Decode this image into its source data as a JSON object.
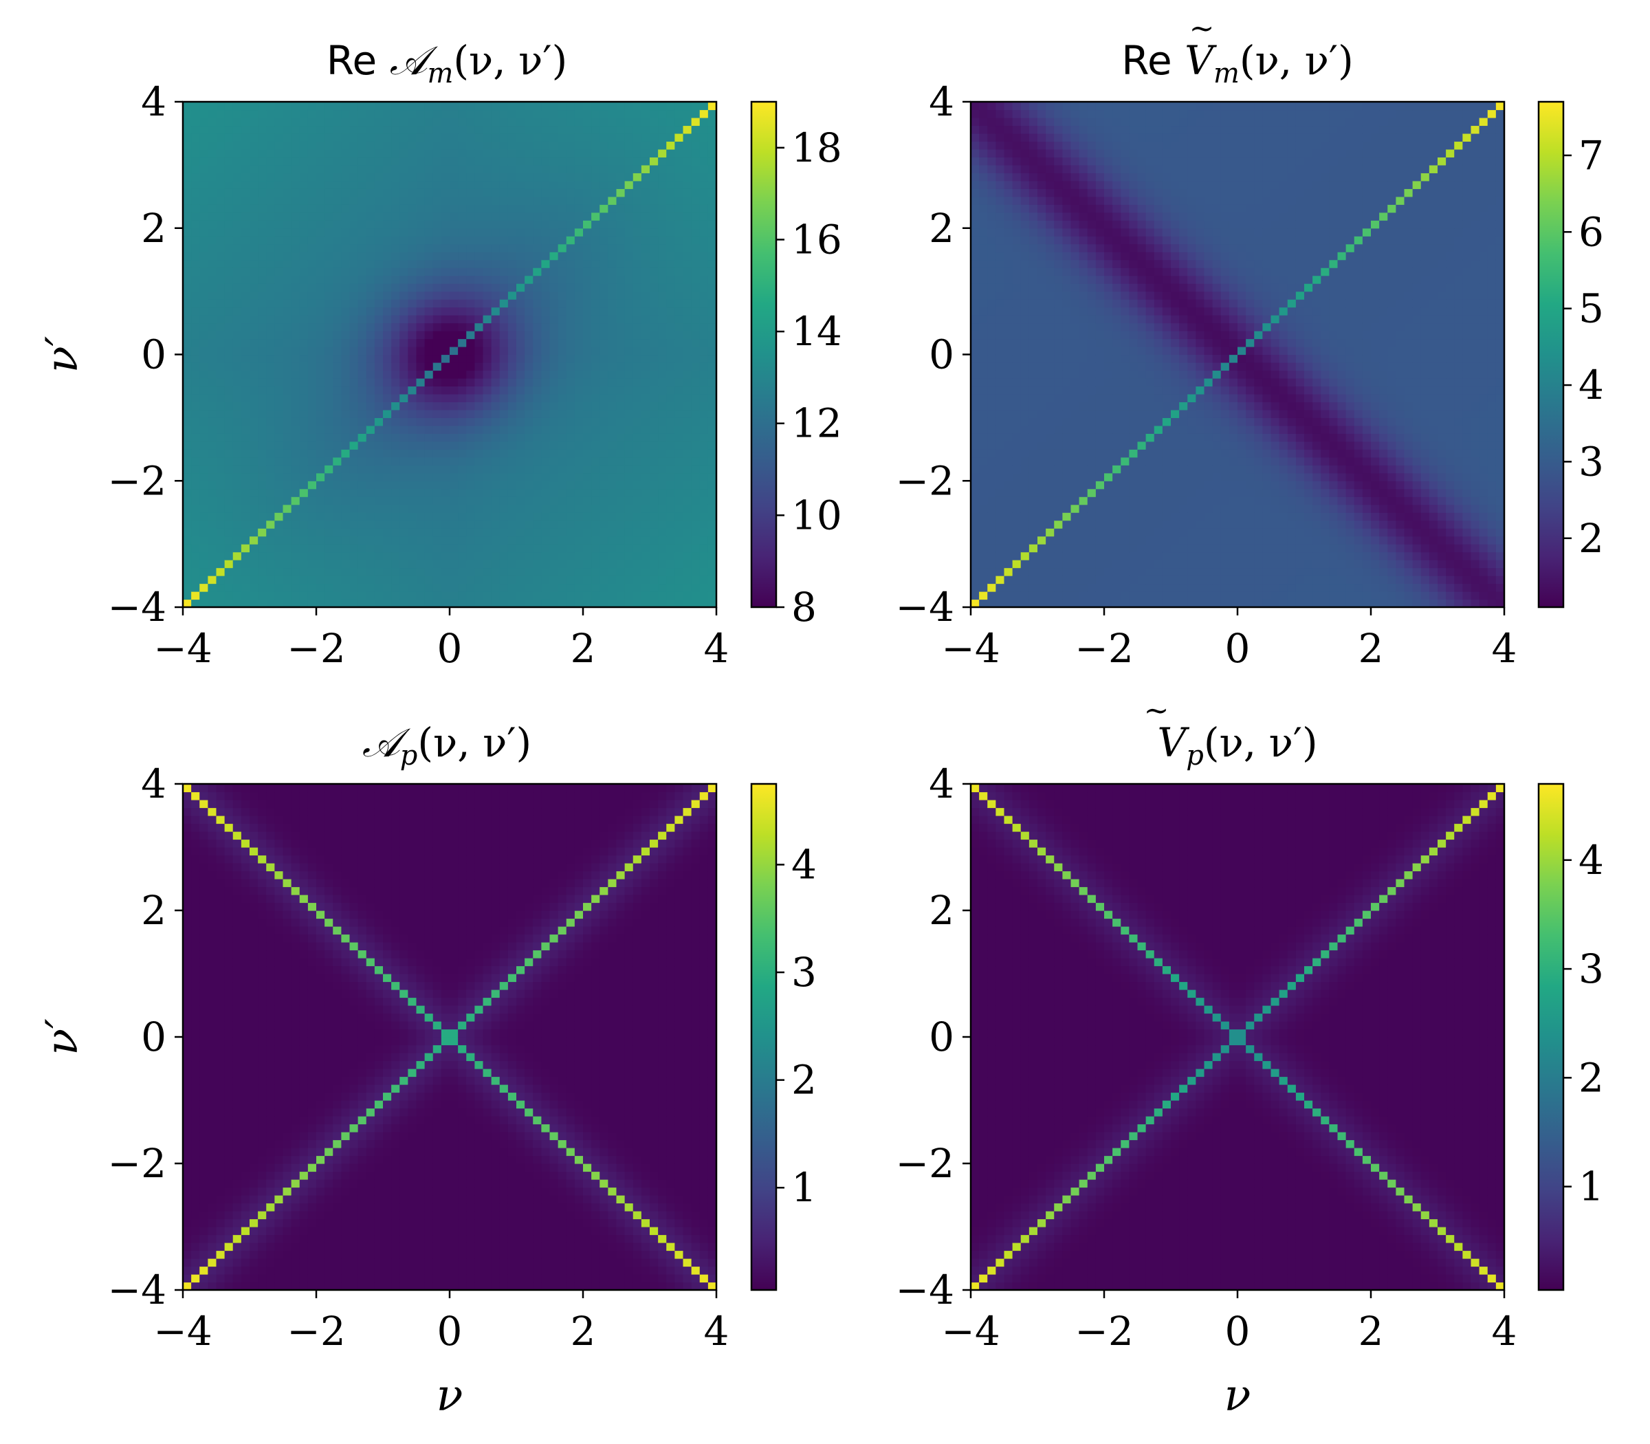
{
  "chart_data": [
    {
      "type": "heatmap",
      "title": "Re 𝒜_m(ν, ν′)",
      "title_prefix": "Re",
      "title_symbol": "𝒜",
      "title_subscript": "m",
      "title_args": "(ν, ν′)",
      "xlabel": "",
      "ylabel": "ν′",
      "xlim": [
        -4,
        4
      ],
      "ylim": [
        -4,
        4
      ],
      "xticks": [
        "−4",
        "−2",
        "0",
        "2",
        "4"
      ],
      "yticks": [
        "−4",
        "−2",
        "0",
        "2",
        "4"
      ],
      "colormap": "viridis",
      "colorbar_range": [
        8,
        19
      ],
      "colorbar_ticks": [
        "8",
        "10",
        "12",
        "14",
        "16",
        "18"
      ],
      "colorbar_tick_values": [
        8,
        10,
        12,
        14,
        16,
        18
      ],
      "pattern": "main diagonal ν = ν′ peaks at ~19 near ±4 and ~12 at center; dip ~8 near origin along ν = −ν′; background ~11–13"
    },
    {
      "type": "heatmap",
      "title": "Re Ṽ_m(ν, ν′)",
      "title_prefix": "Re",
      "title_symbol": "V",
      "title_subscript": "m",
      "title_args": "(ν, ν′)",
      "xlabel": "",
      "ylabel": "",
      "xlim": [
        -4,
        4
      ],
      "ylim": [
        -4,
        4
      ],
      "xticks": [
        "−4",
        "−2",
        "0",
        "2",
        "4"
      ],
      "yticks": [
        "−4",
        "−2",
        "0",
        "2",
        "4"
      ],
      "colormap": "viridis",
      "colorbar_range": [
        1.1,
        7.7
      ],
      "colorbar_ticks": [
        "2",
        "3",
        "4",
        "5",
        "6",
        "7"
      ],
      "colorbar_tick_values": [
        2,
        3,
        4,
        5,
        6,
        7
      ],
      "pattern": "main diagonal ν = ν′ peaks at ~7.7 near ±4 and ~4 at center; dark valley ~1.2 along ν = −ν′; background ~2.5–3"
    },
    {
      "type": "heatmap",
      "title": "𝒜_p(ν, ν′)",
      "title_prefix": "",
      "title_symbol": "𝒜",
      "title_subscript": "p",
      "title_args": "(ν, ν′)",
      "xlabel": "ν",
      "ylabel": "ν′",
      "xlim": [
        -4,
        4
      ],
      "ylim": [
        -4,
        4
      ],
      "xticks": [
        "−4",
        "−2",
        "0",
        "2",
        "4"
      ],
      "yticks": [
        "−4",
        "−2",
        "0",
        "2",
        "4"
      ],
      "colormap": "viridis",
      "colorbar_range": [
        0.05,
        4.75
      ],
      "colorbar_ticks": [
        "1",
        "2",
        "3",
        "4"
      ],
      "colorbar_tick_values": [
        1,
        2,
        3,
        4
      ],
      "pattern": "X pattern: both diagonals ν = ±ν′ peak at ~4.7 near corners and ~3 at center; background ~0.1"
    },
    {
      "type": "heatmap",
      "title": "Ṽ_p(ν, ν′)",
      "title_prefix": "",
      "title_symbol": "V",
      "title_subscript": "p",
      "title_args": "(ν, ν′)",
      "xlabel": "ν",
      "ylabel": "",
      "xlim": [
        -4,
        4
      ],
      "ylim": [
        -4,
        4
      ],
      "xticks": [
        "−4",
        "−2",
        "0",
        "2",
        "4"
      ],
      "yticks": [
        "−4",
        "−2",
        "0",
        "2",
        "4"
      ],
      "colormap": "viridis",
      "colorbar_range": [
        0.05,
        4.7
      ],
      "colorbar_ticks": [
        "1",
        "2",
        "3",
        "4"
      ],
      "colorbar_tick_values": [
        1,
        2,
        3,
        4
      ],
      "pattern": "X pattern: both diagonals ν = ±ν′ peak at ~4.6 near corners and ~2.3 at center; background ~0.1"
    }
  ]
}
